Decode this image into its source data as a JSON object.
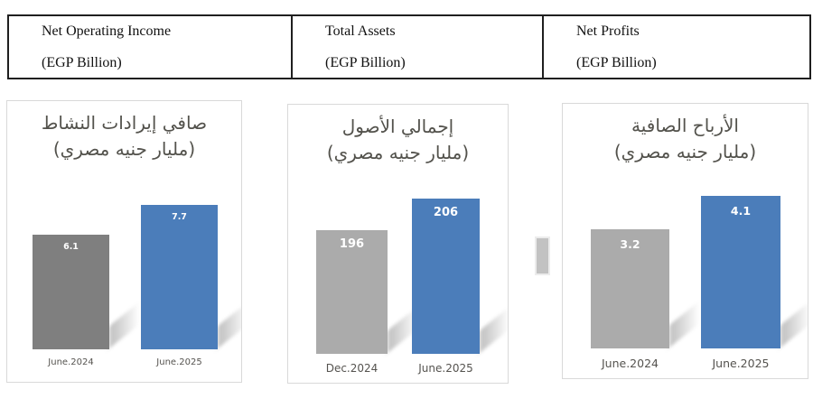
{
  "header": {
    "cells": [
      {
        "title": "Net Operating Income",
        "subtitle": "(EGP Billion)"
      },
      {
        "title": "Total Assets",
        "subtitle": "(EGP Billion)"
      },
      {
        "title": "Net Profits",
        "subtitle": "(EGP Billion)"
      }
    ]
  },
  "chart_data": [
    {
      "type": "bar",
      "title": "صافي إيرادات النشاط",
      "subtitle": "(مليار جنيه مصري)",
      "categories": [
        "June.2024",
        "June.2025"
      ],
      "values": [
        6.1,
        7.7
      ],
      "data_labels": [
        "6.1",
        "7.7"
      ],
      "bar_colors": [
        "#7f7f7f",
        "#4b7dba"
      ],
      "ylim": [
        0,
        8.5
      ],
      "grid": false,
      "legend": "none"
    },
    {
      "type": "bar",
      "title": "إجمالي الأصول",
      "subtitle": "(مليار جنيه مصري)",
      "categories": [
        "Dec.2024",
        "June.2025"
      ],
      "values": [
        196,
        206
      ],
      "data_labels": [
        "196",
        "206"
      ],
      "bar_colors": [
        "#ababab",
        "#4b7dba"
      ],
      "ylim": [
        157,
        214
      ],
      "grid": false,
      "legend": "none"
    },
    {
      "type": "bar",
      "title": "الأرباح الصافية",
      "subtitle": "(مليار جنيه مصري)",
      "categories": [
        "June.2024",
        "June.2025"
      ],
      "values": [
        3.2,
        4.1
      ],
      "data_labels": [
        "3.2",
        "4.1"
      ],
      "bar_colors": [
        "#ababab",
        "#4b7dba"
      ],
      "ylim": [
        0,
        4.6
      ],
      "grid": false,
      "legend": "none"
    }
  ],
  "colors": {
    "accent_blue": "#4b7dba",
    "dark_gray_bar": "#7f7f7f",
    "light_gray_bar": "#ababab",
    "card_border": "#d9d9d9",
    "title_text": "#53524c",
    "axis_text": "#595959",
    "header_border": "#1f1f1f",
    "background": "#ffffff"
  }
}
